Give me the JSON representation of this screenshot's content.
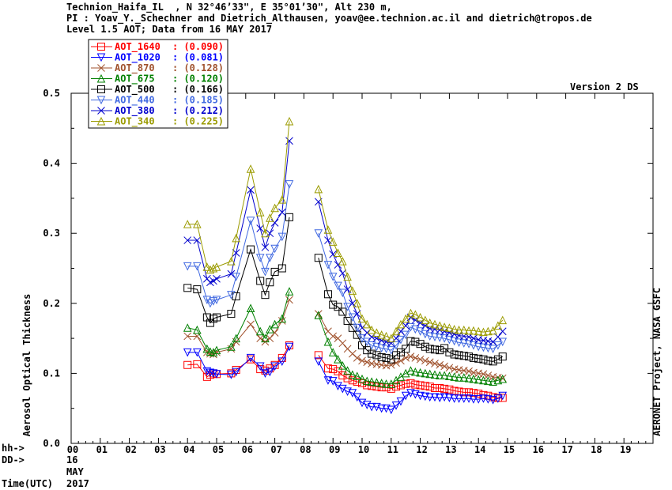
{
  "header": {
    "line1": "Technion_Haifa_IL  , N 32°46’33\", E 35°01’30\", Alt 230 m,",
    "line2": "PI : Yoav_Y._Schechner and Dietrich_Althausen, yoav@ee.technion.ac.il and dietrich@tropos.de",
    "line3": "Level 1.5 AOT; Data from 16 MAY 2017"
  },
  "version_label": "Version 2 DS",
  "right_label": "AERONET Project, NASA GSFC",
  "bottom": {
    "hh": "hh->",
    "dd": "DD->",
    "time": "Time(UTC)",
    "day": "16",
    "month": "MAY",
    "year": "2017"
  },
  "chart_data": {
    "type": "line",
    "ylabel": "Aerosol Optical Thickness",
    "ylim": [
      0.0,
      0.5
    ],
    "xlim": [
      0,
      20
    ],
    "yticks": [
      "0.0",
      "0.1",
      "0.2",
      "0.3",
      "0.4",
      "0.5"
    ],
    "xticks": [
      "00",
      "01",
      "02",
      "03",
      "04",
      "05",
      "06",
      "07",
      "08",
      "09",
      "10",
      "11",
      "12",
      "13",
      "14",
      "15",
      "16",
      "17",
      "18",
      "19"
    ],
    "legend_placement": "top-left",
    "series": [
      {
        "name": "AOT_1640",
        "mean": "(0.090)",
        "color": "#ff0000",
        "marker": "square",
        "x": [
          4.0,
          4.33,
          4.67,
          4.78,
          4.89,
          5.0,
          5.5,
          5.67,
          6.17,
          6.5,
          6.67,
          6.83,
          7.0,
          7.25,
          7.5,
          8.5,
          8.83,
          9.0,
          9.17,
          9.33,
          9.5,
          9.67,
          9.83,
          10.0,
          10.17,
          10.33,
          10.5,
          10.67,
          10.83,
          11.0,
          11.17,
          11.33,
          11.5,
          11.67,
          11.83,
          12.0,
          12.17,
          12.33,
          12.5,
          12.67,
          12.83,
          13.0,
          13.17,
          13.33,
          13.5,
          13.67,
          13.83,
          14.0,
          14.17,
          14.33,
          14.5,
          14.67,
          14.83
        ],
        "y": [
          0.112,
          0.113,
          0.095,
          0.098,
          0.1,
          0.099,
          0.1,
          0.105,
          0.12,
          0.106,
          0.104,
          0.107,
          0.112,
          0.122,
          0.14,
          0.126,
          0.107,
          0.106,
          0.103,
          0.097,
          0.093,
          0.09,
          0.088,
          0.086,
          0.083,
          0.082,
          0.081,
          0.08,
          0.08,
          0.078,
          0.081,
          0.083,
          0.085,
          0.086,
          0.084,
          0.083,
          0.082,
          0.081,
          0.079,
          0.079,
          0.078,
          0.077,
          0.075,
          0.074,
          0.073,
          0.073,
          0.072,
          0.071,
          0.069,
          0.068,
          0.066,
          0.065,
          0.065
        ]
      },
      {
        "name": "AOT_1020",
        "mean": "(0.081)",
        "color": "#0000ff",
        "marker": "triangle-down",
        "x": [
          4.0,
          4.33,
          4.67,
          4.78,
          4.89,
          5.0,
          5.5,
          5.67,
          6.17,
          6.5,
          6.67,
          6.83,
          7.0,
          7.25,
          7.5,
          8.5,
          8.83,
          9.0,
          9.17,
          9.33,
          9.5,
          9.67,
          9.83,
          10.0,
          10.17,
          10.33,
          10.5,
          10.67,
          10.83,
          11.0,
          11.17,
          11.33,
          11.5,
          11.67,
          11.83,
          12.0,
          12.17,
          12.33,
          12.5,
          12.67,
          12.83,
          13.0,
          13.17,
          13.33,
          13.5,
          13.67,
          13.83,
          14.0,
          14.17,
          14.33,
          14.5,
          14.67,
          14.83
        ],
        "y": [
          0.13,
          0.13,
          0.103,
          0.101,
          0.1,
          0.099,
          0.098,
          0.102,
          0.122,
          0.11,
          0.1,
          0.102,
          0.11,
          0.117,
          0.138,
          0.117,
          0.09,
          0.089,
          0.082,
          0.078,
          0.074,
          0.072,
          0.066,
          0.058,
          0.055,
          0.052,
          0.052,
          0.05,
          0.05,
          0.048,
          0.054,
          0.06,
          0.068,
          0.072,
          0.07,
          0.068,
          0.067,
          0.066,
          0.066,
          0.065,
          0.066,
          0.065,
          0.064,
          0.064,
          0.064,
          0.064,
          0.063,
          0.063,
          0.064,
          0.063,
          0.062,
          0.064,
          0.068
        ]
      },
      {
        "name": "AOT_870",
        "mean": "(0.128)",
        "color": "#a0522d",
        "marker": "x",
        "x": [
          4.0,
          4.33,
          4.67,
          4.78,
          4.89,
          5.0,
          5.5,
          5.67,
          6.17,
          6.5,
          6.67,
          6.83,
          7.0,
          7.25,
          7.5,
          8.5,
          8.83,
          9.0,
          9.17,
          9.33,
          9.5,
          9.67,
          9.83,
          10.0,
          10.17,
          10.33,
          10.5,
          10.67,
          10.83,
          11.0,
          11.17,
          11.33,
          11.5,
          11.67,
          11.83,
          12.0,
          12.17,
          12.33,
          12.5,
          12.67,
          12.83,
          13.0,
          13.17,
          13.33,
          13.5,
          13.67,
          13.83,
          14.0,
          14.17,
          14.33,
          14.5,
          14.67,
          14.83
        ],
        "y": [
          0.153,
          0.153,
          0.13,
          0.128,
          0.127,
          0.13,
          0.135,
          0.145,
          0.17,
          0.15,
          0.145,
          0.15,
          0.158,
          0.175,
          0.205,
          0.185,
          0.16,
          0.153,
          0.15,
          0.143,
          0.135,
          0.128,
          0.122,
          0.118,
          0.116,
          0.114,
          0.113,
          0.112,
          0.111,
          0.112,
          0.115,
          0.118,
          0.122,
          0.124,
          0.122,
          0.12,
          0.118,
          0.116,
          0.114,
          0.112,
          0.11,
          0.108,
          0.106,
          0.105,
          0.104,
          0.103,
          0.101,
          0.1,
          0.099,
          0.097,
          0.095,
          0.094,
          0.093
        ]
      },
      {
        "name": "AOT_675",
        "mean": "(0.120)",
        "color": "#008000",
        "marker": "triangle-up",
        "x": [
          4.0,
          4.33,
          4.67,
          4.78,
          4.89,
          5.0,
          5.5,
          5.67,
          6.17,
          6.5,
          6.67,
          6.83,
          7.0,
          7.25,
          7.5,
          8.5,
          8.83,
          9.0,
          9.17,
          9.33,
          9.5,
          9.67,
          9.83,
          10.0,
          10.17,
          10.33,
          10.5,
          10.67,
          10.83,
          11.0,
          11.17,
          11.33,
          11.5,
          11.67,
          11.83,
          12.0,
          12.17,
          12.33,
          12.5,
          12.67,
          12.83,
          13.0,
          13.17,
          13.33,
          13.5,
          13.67,
          13.83,
          14.0,
          14.17,
          14.33,
          14.5,
          14.67,
          14.83
        ],
        "y": [
          0.165,
          0.162,
          0.135,
          0.131,
          0.13,
          0.133,
          0.138,
          0.15,
          0.193,
          0.16,
          0.15,
          0.163,
          0.17,
          0.178,
          0.217,
          0.183,
          0.145,
          0.13,
          0.12,
          0.111,
          0.104,
          0.098,
          0.096,
          0.092,
          0.089,
          0.088,
          0.087,
          0.086,
          0.085,
          0.085,
          0.09,
          0.095,
          0.1,
          0.104,
          0.102,
          0.101,
          0.1,
          0.099,
          0.098,
          0.097,
          0.097,
          0.096,
          0.095,
          0.094,
          0.094,
          0.093,
          0.092,
          0.091,
          0.09,
          0.089,
          0.088,
          0.09,
          0.092
        ]
      },
      {
        "name": "AOT_500",
        "mean": "(0.166)",
        "color": "#000000",
        "marker": "square",
        "x": [
          4.0,
          4.33,
          4.67,
          4.78,
          4.89,
          5.0,
          5.5,
          5.67,
          6.17,
          6.5,
          6.67,
          6.83,
          7.0,
          7.25,
          7.5,
          8.5,
          8.83,
          9.0,
          9.17,
          9.33,
          9.5,
          9.67,
          9.83,
          10.0,
          10.17,
          10.33,
          10.5,
          10.67,
          10.83,
          11.0,
          11.17,
          11.33,
          11.5,
          11.67,
          11.83,
          12.0,
          12.17,
          12.33,
          12.5,
          12.67,
          12.83,
          13.0,
          13.17,
          13.33,
          13.5,
          13.67,
          13.83,
          14.0,
          14.17,
          14.33,
          14.5,
          14.67,
          14.83
        ],
        "y": [
          0.222,
          0.22,
          0.18,
          0.172,
          0.178,
          0.18,
          0.185,
          0.21,
          0.277,
          0.232,
          0.212,
          0.23,
          0.245,
          0.25,
          0.323,
          0.265,
          0.213,
          0.198,
          0.195,
          0.188,
          0.175,
          0.165,
          0.155,
          0.14,
          0.133,
          0.128,
          0.126,
          0.123,
          0.122,
          0.12,
          0.126,
          0.13,
          0.135,
          0.146,
          0.145,
          0.142,
          0.138,
          0.135,
          0.134,
          0.133,
          0.136,
          0.13,
          0.127,
          0.126,
          0.125,
          0.124,
          0.122,
          0.121,
          0.12,
          0.118,
          0.117,
          0.12,
          0.124
        ]
      },
      {
        "name": "AOT_440",
        "mean": "(0.185)",
        "color": "#4169e1",
        "marker": "triangle-down",
        "x": [
          4.0,
          4.33,
          4.67,
          4.78,
          4.89,
          5.0,
          5.5,
          5.67,
          6.17,
          6.5,
          6.67,
          6.83,
          7.0,
          7.25,
          7.5,
          8.5,
          8.83,
          9.0,
          9.17,
          9.33,
          9.5,
          9.67,
          9.83,
          10.0,
          10.17,
          10.33,
          10.5,
          10.67,
          10.83,
          11.0,
          11.17,
          11.33,
          11.5,
          11.67,
          11.83,
          12.0,
          12.17,
          12.33,
          12.5,
          12.67,
          12.83,
          13.0,
          13.17,
          13.33,
          13.5,
          13.67,
          13.83,
          14.0,
          14.17,
          14.33,
          14.5,
          14.67,
          14.83
        ],
        "y": [
          0.253,
          0.253,
          0.205,
          0.2,
          0.203,
          0.205,
          0.212,
          0.238,
          0.318,
          0.265,
          0.245,
          0.265,
          0.278,
          0.295,
          0.37,
          0.3,
          0.255,
          0.238,
          0.225,
          0.215,
          0.195,
          0.18,
          0.165,
          0.15,
          0.145,
          0.14,
          0.138,
          0.136,
          0.135,
          0.133,
          0.14,
          0.148,
          0.155,
          0.166,
          0.163,
          0.16,
          0.156,
          0.153,
          0.152,
          0.151,
          0.15,
          0.148,
          0.146,
          0.144,
          0.143,
          0.142,
          0.14,
          0.138,
          0.137,
          0.136,
          0.135,
          0.14,
          0.145
        ]
      },
      {
        "name": "AOT_380",
        "mean": "(0.212)",
        "color": "#0000cd",
        "marker": "x",
        "x": [
          4.0,
          4.33,
          4.67,
          4.78,
          4.89,
          5.0,
          5.5,
          5.67,
          6.17,
          6.5,
          6.67,
          6.83,
          7.0,
          7.25,
          7.5,
          8.5,
          8.83,
          9.0,
          9.17,
          9.33,
          9.5,
          9.67,
          9.83,
          10.0,
          10.17,
          10.33,
          10.5,
          10.67,
          10.83,
          11.0,
          11.17,
          11.33,
          11.5,
          11.67,
          11.83,
          12.0,
          12.17,
          12.33,
          12.5,
          12.67,
          12.83,
          13.0,
          13.17,
          13.33,
          13.5,
          13.67,
          13.83,
          14.0,
          14.17,
          14.33,
          14.5,
          14.67,
          14.83
        ],
        "y": [
          0.29,
          0.29,
          0.235,
          0.23,
          0.232,
          0.235,
          0.242,
          0.272,
          0.362,
          0.307,
          0.28,
          0.3,
          0.315,
          0.33,
          0.432,
          0.345,
          0.29,
          0.27,
          0.255,
          0.243,
          0.22,
          0.2,
          0.185,
          0.165,
          0.158,
          0.152,
          0.15,
          0.147,
          0.145,
          0.143,
          0.15,
          0.16,
          0.168,
          0.18,
          0.176,
          0.172,
          0.168,
          0.164,
          0.163,
          0.162,
          0.16,
          0.158,
          0.156,
          0.154,
          0.153,
          0.152,
          0.15,
          0.148,
          0.147,
          0.146,
          0.145,
          0.152,
          0.16
        ]
      },
      {
        "name": "AOT_340",
        "mean": "(0.225)",
        "color": "#9b9b00",
        "marker": "triangle-up",
        "x": [
          4.0,
          4.33,
          4.67,
          4.78,
          4.89,
          5.0,
          5.5,
          5.67,
          6.17,
          6.5,
          6.67,
          6.83,
          7.0,
          7.25,
          7.5,
          8.5,
          8.83,
          9.0,
          9.17,
          9.33,
          9.5,
          9.67,
          9.83,
          10.0,
          10.17,
          10.33,
          10.5,
          10.67,
          10.83,
          11.0,
          11.17,
          11.33,
          11.5,
          11.67,
          11.83,
          12.0,
          12.17,
          12.33,
          12.5,
          12.67,
          12.83,
          13.0,
          13.17,
          13.33,
          13.5,
          13.67,
          13.83,
          14.0,
          14.17,
          14.33,
          14.5,
          14.67,
          14.83
        ],
        "y": [
          0.313,
          0.313,
          0.252,
          0.248,
          0.25,
          0.252,
          0.26,
          0.293,
          0.392,
          0.33,
          0.3,
          0.322,
          0.336,
          0.348,
          0.46,
          0.363,
          0.305,
          0.288,
          0.272,
          0.26,
          0.238,
          0.218,
          0.2,
          0.178,
          0.17,
          0.162,
          0.158,
          0.155,
          0.153,
          0.15,
          0.16,
          0.17,
          0.178,
          0.186,
          0.184,
          0.18,
          0.176,
          0.172,
          0.17,
          0.168,
          0.166,
          0.165,
          0.163,
          0.162,
          0.162,
          0.161,
          0.161,
          0.16,
          0.159,
          0.16,
          0.161,
          0.168,
          0.176
        ]
      }
    ]
  }
}
